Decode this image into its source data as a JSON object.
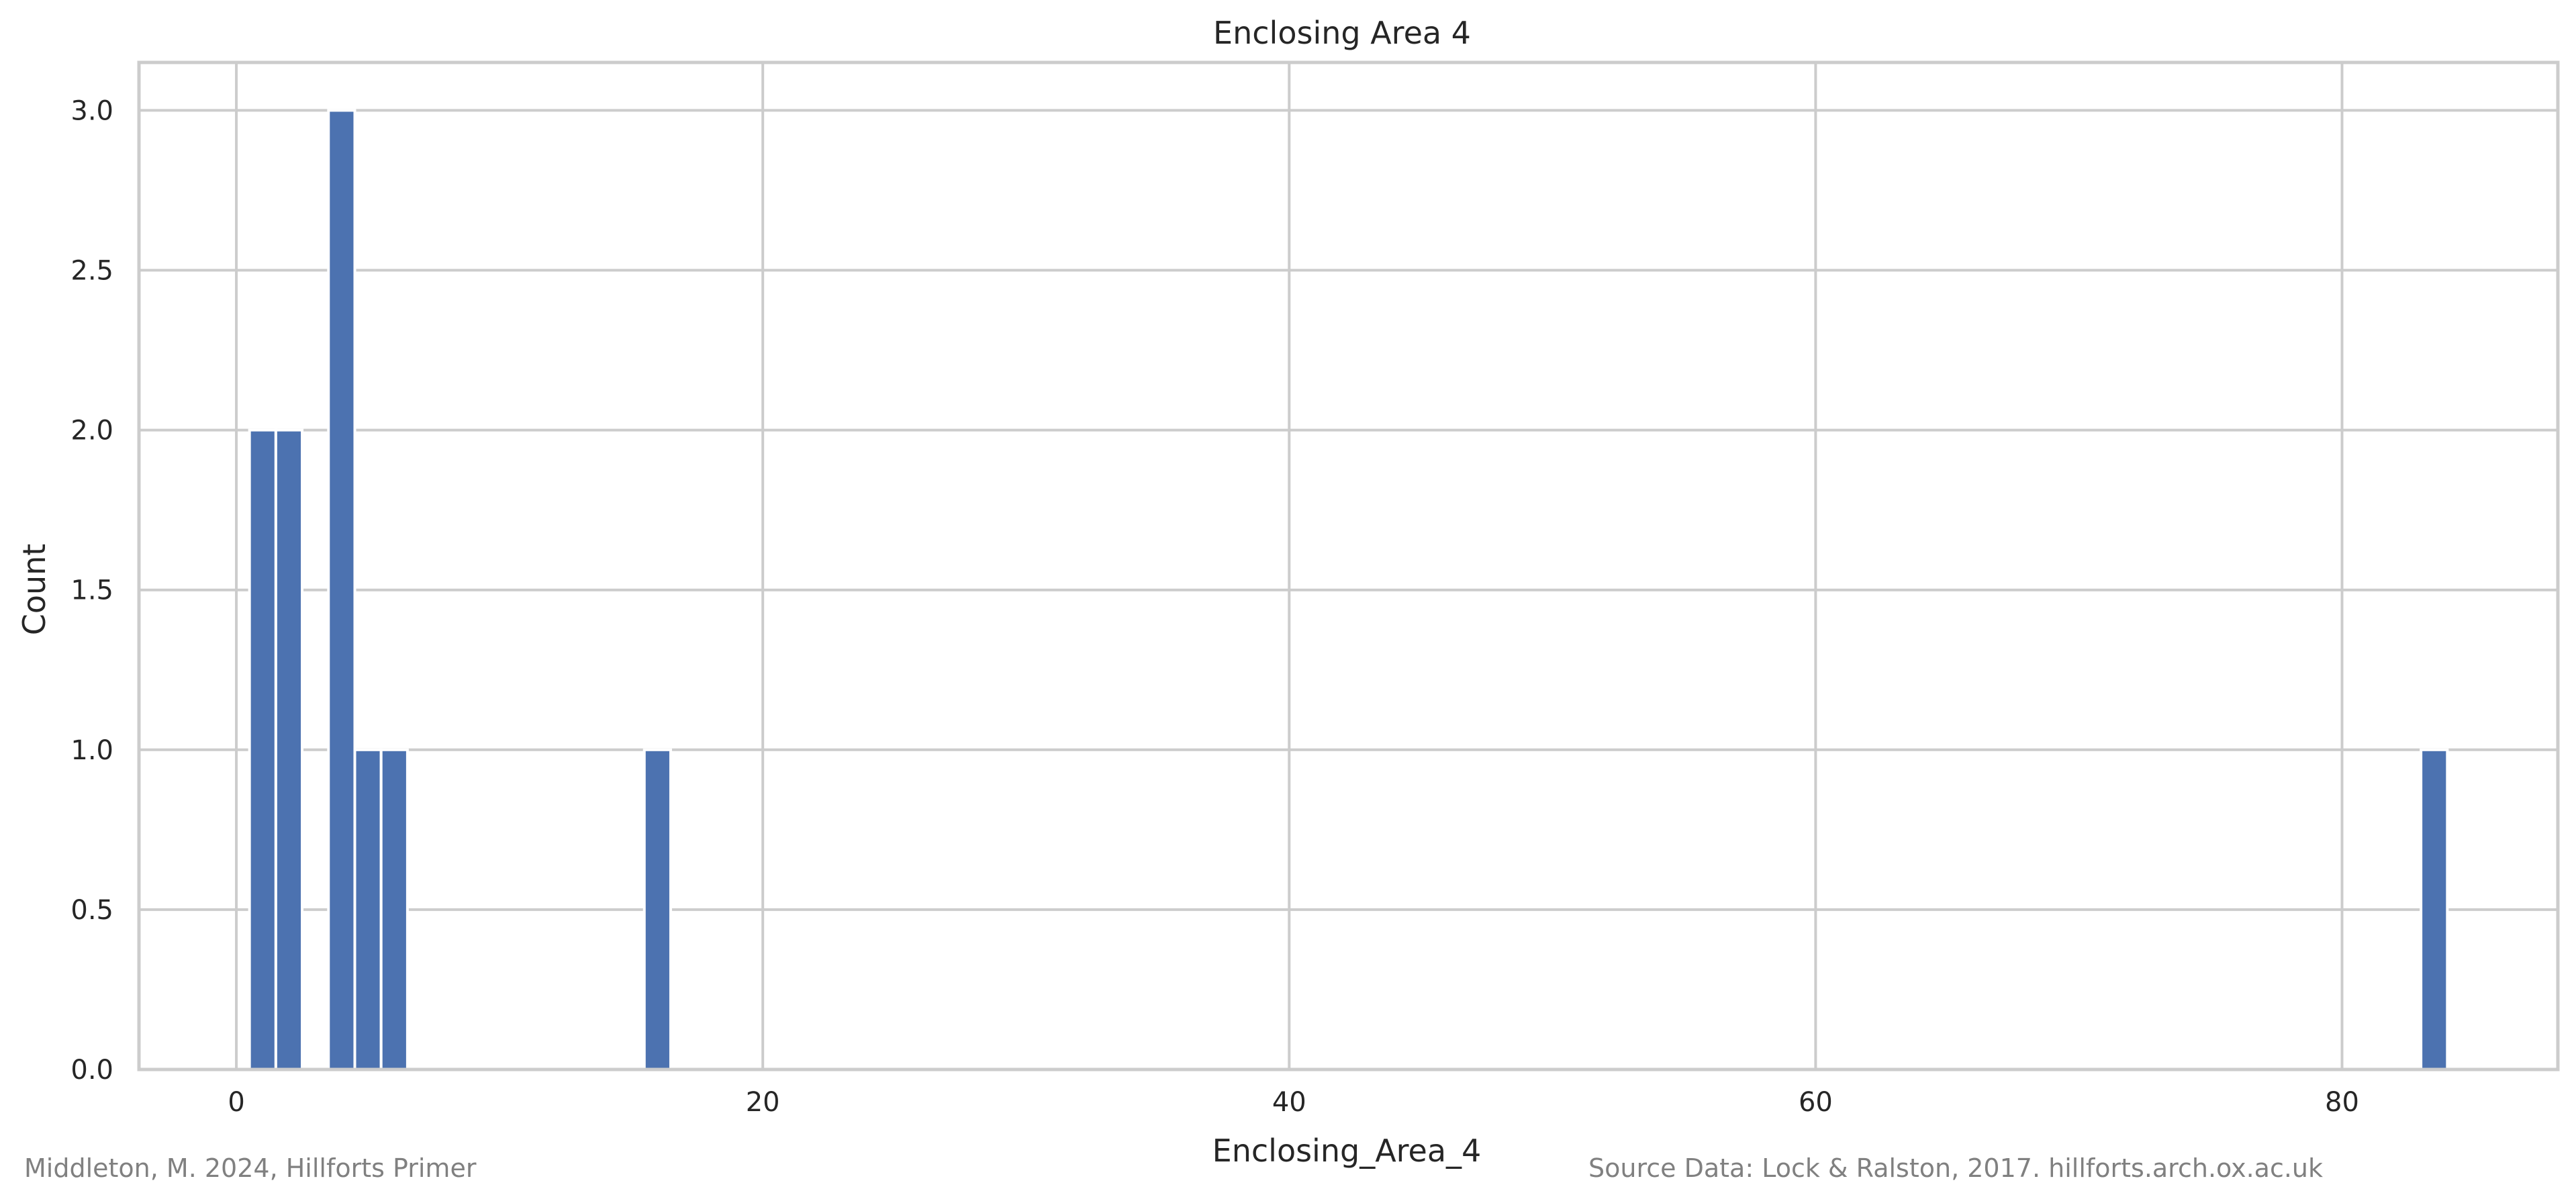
{
  "chart_data": {
    "type": "bar",
    "title": "Enclosing Area 4",
    "xlabel": "Enclosing_Area_4",
    "ylabel": "Count",
    "xlim": [
      -3.7,
      88.2
    ],
    "ylim": [
      0,
      3.15
    ],
    "xticks": [
      0,
      20,
      40,
      60,
      80
    ],
    "yticks": [
      "0.0",
      "0.5",
      "1.0",
      "1.5",
      "2.0",
      "2.5",
      "3.0"
    ],
    "bin_width": 1.0,
    "bins": [
      {
        "start": 0.5,
        "end": 1.5,
        "count": 2
      },
      {
        "start": 1.5,
        "end": 2.5,
        "count": 2
      },
      {
        "start": 3.5,
        "end": 4.5,
        "count": 3
      },
      {
        "start": 4.5,
        "end": 5.5,
        "count": 1
      },
      {
        "start": 5.5,
        "end": 6.5,
        "count": 1
      },
      {
        "start": 15.5,
        "end": 16.5,
        "count": 1
      },
      {
        "start": 83.0,
        "end": 84.0,
        "count": 1
      }
    ],
    "grid": true,
    "bar_color": "#4c72b0",
    "grid_color": "#cccccc"
  },
  "footer": {
    "credit": "Middleton, M. 2024, Hillforts Primer",
    "source": "Source Data: Lock & Ralston, 2017. hillforts.arch.ox.ac.uk"
  }
}
